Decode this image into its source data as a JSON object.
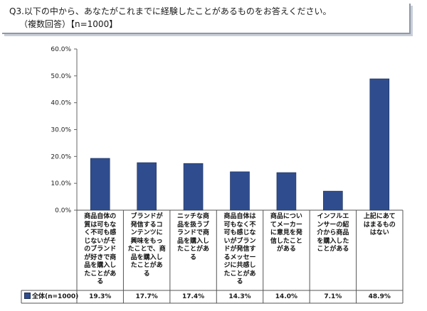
{
  "question": {
    "line1": "Q3.以下の中から、あなたがこれまでに経験したことがあるものをお答えください。",
    "line2": "（複数回答）【n=1000】"
  },
  "chart_data": {
    "type": "bar",
    "categories": [
      "商品自体の質は可もなく不可も感じないがそのブランドが好きで商品を購入したことがある",
      "ブランドが発信するコンテンツに興味をもったことで、商品を購入したことがある",
      "ニッチな商品を扱うブランドで商品を購入したことがある",
      "商品自体は可もなく不可も感じないがブランドが発信するメッセージに共感したことがある",
      "商品についてメーカーに意見を発信したことがある",
      "インフルエンサーの紹介から商品を購入したことがある",
      "上記にあてはまるものはない"
    ],
    "series": [
      {
        "name": "全体(n=1000)",
        "values": [
          19.3,
          17.7,
          17.4,
          14.3,
          14.0,
          7.1,
          48.9
        ],
        "value_labels": [
          "19.3%",
          "17.7%",
          "17.4%",
          "14.3%",
          "14.0%",
          "7.1%",
          "48.9%"
        ]
      }
    ],
    "ylim": [
      0,
      60
    ],
    "yticks": [
      "0.0%",
      "10.0%",
      "20.0%",
      "30.0%",
      "40.0%",
      "50.0%",
      "60.0%"
    ],
    "grid": false,
    "legend": "data-table-left",
    "bar_color": "#2f4d8e"
  }
}
